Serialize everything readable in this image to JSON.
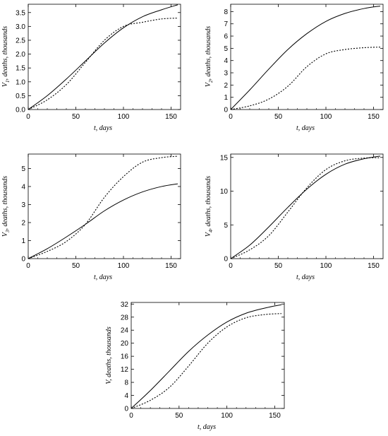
{
  "chart_data": [
    {
      "type": "line",
      "x_label": "t, days",
      "y_label_symbol": "V",
      "y_label_sub": "1",
      "y_label_rest": ", deaths, thousands",
      "xlim": [
        0,
        160
      ],
      "ylim": [
        0,
        3.8
      ],
      "x_ticks": [
        0,
        50,
        100,
        150
      ],
      "y_ticks": [
        "0.0",
        "0.5",
        "1.0",
        "1.5",
        "2.0",
        "2.5",
        "3.0",
        "3.5"
      ],
      "series": [
        {
          "style": "solid",
          "x": [
            0,
            20,
            40,
            60,
            80,
            100,
            120,
            140,
            157
          ],
          "y": [
            0,
            0.5,
            1.1,
            1.75,
            2.4,
            2.95,
            3.35,
            3.6,
            3.78
          ]
        },
        {
          "style": "dotted",
          "x": [
            0,
            20,
            40,
            60,
            80,
            100,
            120,
            140,
            157
          ],
          "y": [
            0,
            0.35,
            0.9,
            1.7,
            2.5,
            3.0,
            3.15,
            3.27,
            3.3
          ]
        }
      ]
    },
    {
      "type": "line",
      "x_label": "t, days",
      "y_label_symbol": "V",
      "y_label_sub": "2",
      "y_label_rest": ", deaths, thousands",
      "xlim": [
        0,
        160
      ],
      "ylim": [
        0,
        8.6
      ],
      "x_ticks": [
        0,
        50,
        100,
        150
      ],
      "y_ticks": [
        "0",
        "1",
        "2",
        "3",
        "4",
        "5",
        "6",
        "7",
        "8"
      ],
      "series": [
        {
          "style": "solid",
          "x": [
            0,
            20,
            40,
            60,
            80,
            100,
            120,
            140,
            157
          ],
          "y": [
            0,
            1.6,
            3.3,
            4.9,
            6.2,
            7.2,
            7.85,
            8.25,
            8.45
          ]
        },
        {
          "style": "dotted",
          "x": [
            0,
            20,
            40,
            60,
            80,
            100,
            120,
            140,
            157
          ],
          "y": [
            0,
            0.3,
            0.85,
            1.9,
            3.5,
            4.55,
            4.9,
            5.05,
            5.1
          ]
        }
      ]
    },
    {
      "type": "line",
      "x_label": "t, days",
      "y_label_symbol": "V",
      "y_label_sub": "3",
      "y_label_rest": ", deaths, thousands",
      "xlim": [
        0,
        160
      ],
      "ylim": [
        0,
        5.8
      ],
      "x_ticks": [
        0,
        50,
        100,
        150
      ],
      "y_ticks": [
        "0",
        "1",
        "2",
        "3",
        "4",
        "5"
      ],
      "series": [
        {
          "style": "solid",
          "x": [
            0,
            20,
            40,
            60,
            80,
            100,
            120,
            140,
            157
          ],
          "y": [
            0,
            0.55,
            1.2,
            1.9,
            2.65,
            3.25,
            3.7,
            4.0,
            4.15
          ]
        },
        {
          "style": "dotted",
          "x": [
            0,
            20,
            40,
            60,
            80,
            100,
            120,
            140,
            157
          ],
          "y": [
            0,
            0.4,
            0.95,
            1.9,
            3.4,
            4.55,
            5.35,
            5.6,
            5.68
          ]
        }
      ]
    },
    {
      "type": "line",
      "x_label": "t, days",
      "y_label_symbol": "V",
      "y_label_sub": "4",
      "y_label_rest": ", deaths, thousands",
      "xlim": [
        0,
        160
      ],
      "ylim": [
        0,
        15.5
      ],
      "x_ticks": [
        0,
        50,
        100,
        150
      ],
      "y_ticks": [
        "0",
        "5",
        "10",
        "15"
      ],
      "series": [
        {
          "style": "solid",
          "x": [
            0,
            20,
            40,
            60,
            80,
            100,
            120,
            140,
            157
          ],
          "y": [
            0,
            2.0,
            4.7,
            7.6,
            10.3,
            12.5,
            14.0,
            14.8,
            15.2
          ]
        },
        {
          "style": "dotted",
          "x": [
            0,
            20,
            40,
            60,
            80,
            100,
            120,
            140,
            157
          ],
          "y": [
            0,
            1.3,
            3.4,
            6.9,
            10.5,
            13.2,
            14.5,
            14.9,
            14.95
          ]
        }
      ]
    },
    {
      "type": "line",
      "x_label": "t, days",
      "y_label_symbol": "V",
      "y_label_sub": "",
      "y_label_rest": ", deaths, thousands",
      "xlim": [
        0,
        160
      ],
      "ylim": [
        0,
        32.5
      ],
      "x_ticks": [
        0,
        50,
        100,
        150
      ],
      "y_ticks": [
        "0",
        "4",
        "8",
        "12",
        "16",
        "20",
        "24",
        "28",
        "32"
      ],
      "series": [
        {
          "style": "solid",
          "x": [
            0,
            20,
            40,
            60,
            80,
            100,
            120,
            140,
            157
          ],
          "y": [
            0,
            5.5,
            11.5,
            17.5,
            22.5,
            26.5,
            29.2,
            30.8,
            31.8
          ]
        },
        {
          "style": "dotted",
          "x": [
            0,
            20,
            40,
            60,
            80,
            100,
            120,
            140,
            157
          ],
          "y": [
            0,
            2.5,
            6.5,
            13.0,
            20.0,
            25.0,
            27.8,
            28.8,
            29.1
          ]
        }
      ]
    }
  ]
}
